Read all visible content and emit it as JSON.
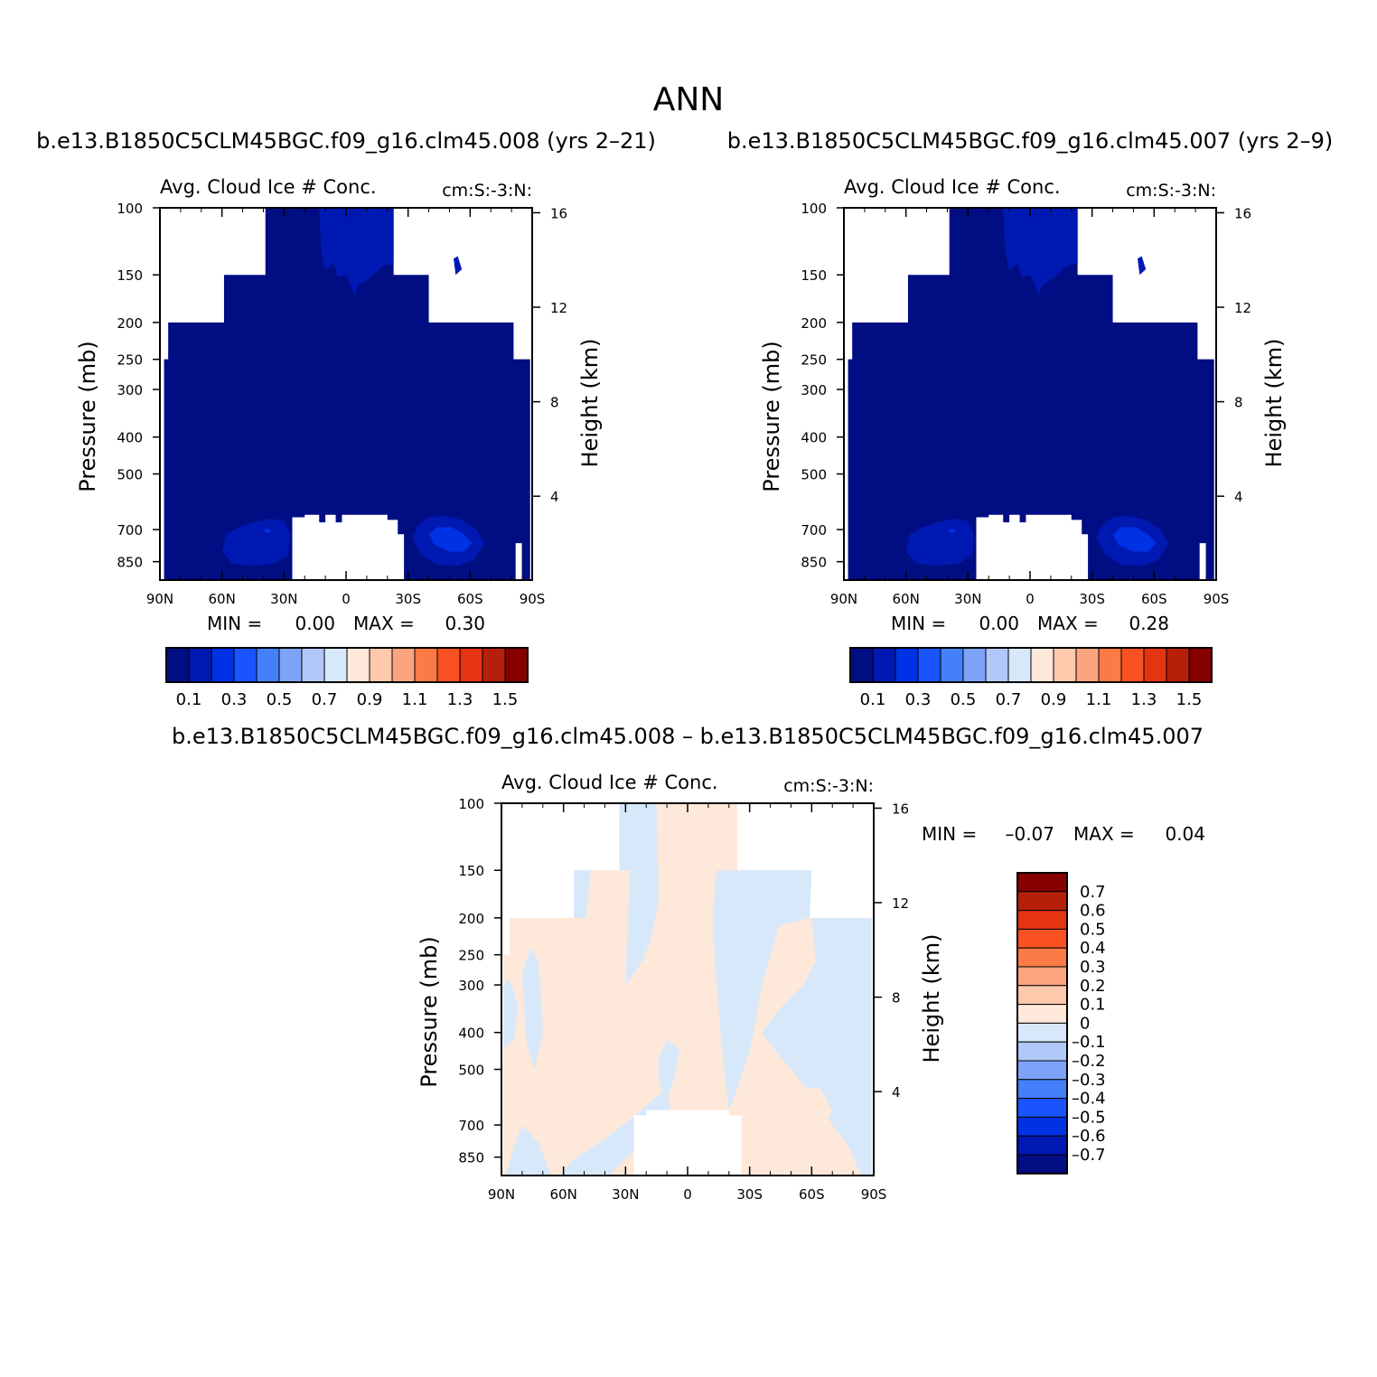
{
  "figure": {
    "title": "ANN"
  },
  "levels_abs": [
    0.1,
    0.2,
    0.3,
    0.4,
    0.5,
    0.6,
    0.7,
    0.8,
    0.9,
    1.0,
    1.1,
    1.2,
    1.3,
    1.4,
    1.5
  ],
  "colors_abs": [
    "#000d83",
    "#0019b2",
    "#0032e5",
    "#1954ff",
    "#4580fa",
    "#7ca3f7",
    "#b2c8f8",
    "#d7e8fb",
    "#fde8d9",
    "#fdc8ab",
    "#fca47f",
    "#fb7a45",
    "#fa5123",
    "#e43412",
    "#b6200a",
    "#870000"
  ],
  "levels_diff": [
    -0.7,
    -0.6,
    -0.5,
    -0.4,
    -0.3,
    -0.2,
    -0.1,
    0,
    0.1,
    0.2,
    0.3,
    0.4,
    0.5,
    0.6,
    0.7
  ],
  "colors_diff": [
    "#000d83",
    "#0019b2",
    "#0032e5",
    "#1954ff",
    "#4580fa",
    "#7ca3f7",
    "#b2c8f8",
    "#d7e8fb",
    "#fde8d9",
    "#fdc8ab",
    "#fca47f",
    "#fb7a45",
    "#fa5123",
    "#e43412",
    "#b6200a",
    "#870000"
  ],
  "chart_data": [
    {
      "type": "heatmap",
      "case_title": "b.e13.B1850C5CLM45BGC.f09_g16.clm45.008 (yrs 2–21)",
      "var_title": "Avg. Cloud Ice # Conc.",
      "units": "cm:S:-3:N:",
      "x_ticks": [
        "90N",
        "60N",
        "30N",
        "0",
        "30S",
        "60S",
        "90S"
      ],
      "y_ticks": [
        100,
        150,
        200,
        250,
        300,
        400,
        500,
        700,
        850
      ],
      "y2_ticks": [
        16,
        12,
        8,
        4
      ],
      "ylabel": "Pressure (mb)",
      "y2label": "Height (km)",
      "min_label": "MIN =",
      "min_value": "0.00",
      "max_label": "MAX =",
      "max_value": "0.30",
      "colorbar_labels": [
        "0.1",
        "0.3",
        "0.5",
        "0.7",
        "0.9",
        "1.1",
        "1.3",
        "1.5"
      ]
    },
    {
      "type": "heatmap",
      "case_title": "b.e13.B1850C5CLM45BGC.f09_g16.clm45.007 (yrs 2–9)",
      "var_title": "Avg. Cloud Ice # Conc.",
      "units": "cm:S:-3:N:",
      "x_ticks": [
        "90N",
        "60N",
        "30N",
        "0",
        "30S",
        "60S",
        "90S"
      ],
      "y_ticks": [
        100,
        150,
        200,
        250,
        300,
        400,
        500,
        700,
        850
      ],
      "y2_ticks": [
        16,
        12,
        8,
        4
      ],
      "ylabel": "Pressure (mb)",
      "y2label": "Height (km)",
      "min_label": "MIN =",
      "min_value": "0.00",
      "max_label": "MAX =",
      "max_value": "0.28",
      "colorbar_labels": [
        "0.1",
        "0.3",
        "0.5",
        "0.7",
        "0.9",
        "1.1",
        "1.3",
        "1.5"
      ]
    },
    {
      "type": "heatmap",
      "case_title": "b.e13.B1850C5CLM45BGC.f09_g16.clm45.008 – b.e13.B1850C5CLM45BGC.f09_g16.clm45.007",
      "var_title": "Avg. Cloud Ice # Conc.",
      "units": "cm:S:-3:N:",
      "x_ticks": [
        "90N",
        "60N",
        "30N",
        "0",
        "30S",
        "60S",
        "90S"
      ],
      "y_ticks": [
        100,
        150,
        200,
        250,
        300,
        400,
        500,
        700,
        850
      ],
      "y2_ticks": [
        16,
        12,
        8,
        4
      ],
      "ylabel": "Pressure (mb)",
      "y2label": "Height (km)",
      "min_label": "MIN =",
      "min_value": "–0.07",
      "max_label": "MAX =",
      "max_value": "0.04",
      "colorbar_labels": [
        "0.7",
        "0.6",
        "0.5",
        "0.4",
        "0.3",
        "0.2",
        "0.1",
        "0",
        "–0.1",
        "–0.2",
        "–0.3",
        "–0.4",
        "–0.5",
        "–0.6",
        "–0.7"
      ]
    }
  ]
}
